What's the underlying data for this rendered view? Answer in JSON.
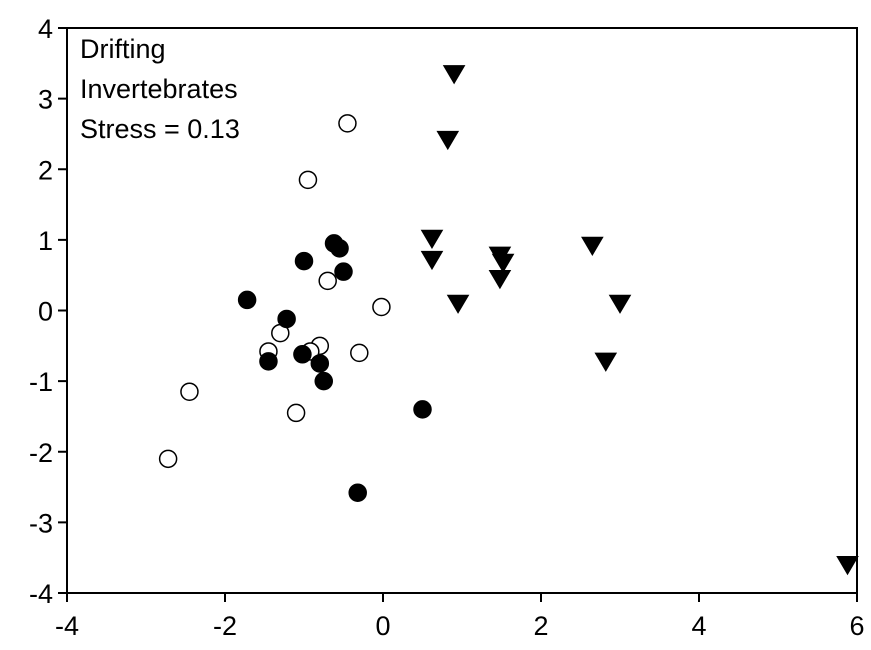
{
  "chart_data": {
    "type": "scatter",
    "title": "",
    "xlabel": "",
    "ylabel": "",
    "xlim": [
      -4,
      6
    ],
    "ylim": [
      -4,
      4
    ],
    "xticks": [
      -4,
      -2,
      0,
      2,
      4,
      6
    ],
    "yticks": [
      -4,
      -3,
      -2,
      -1,
      0,
      1,
      2,
      3,
      4
    ],
    "grid": false,
    "legend": "none",
    "annotation": [
      "Drifting",
      "Invertebrates",
      "Stress = 0.13"
    ],
    "series": [
      {
        "marker": "open-circle",
        "color": "#ffffff",
        "points": [
          {
            "x": -0.45,
            "y": 2.65
          },
          {
            "x": -0.95,
            "y": 1.85
          },
          {
            "x": -0.7,
            "y": 0.42
          },
          {
            "x": -0.02,
            "y": 0.05
          },
          {
            "x": -1.3,
            "y": -0.32
          },
          {
            "x": -1.45,
            "y": -0.58
          },
          {
            "x": -0.8,
            "y": -0.5
          },
          {
            "x": -0.92,
            "y": -0.58
          },
          {
            "x": -0.3,
            "y": -0.6
          },
          {
            "x": -2.45,
            "y": -1.15
          },
          {
            "x": -1.1,
            "y": -1.45
          },
          {
            "x": -2.72,
            "y": -2.1
          }
        ]
      },
      {
        "marker": "filled-circle",
        "color": "#000000",
        "points": [
          {
            "x": -0.62,
            "y": 0.95
          },
          {
            "x": -0.55,
            "y": 0.88
          },
          {
            "x": -1.0,
            "y": 0.7
          },
          {
            "x": -0.5,
            "y": 0.55
          },
          {
            "x": -1.72,
            "y": 0.15
          },
          {
            "x": -1.22,
            "y": -0.12
          },
          {
            "x": -1.02,
            "y": -0.62
          },
          {
            "x": -1.45,
            "y": -0.72
          },
          {
            "x": -0.8,
            "y": -0.75
          },
          {
            "x": -0.75,
            "y": -1.0
          },
          {
            "x": 0.5,
            "y": -1.4
          },
          {
            "x": -0.32,
            "y": -2.58
          }
        ]
      },
      {
        "marker": "filled-triangle-down",
        "color": "#000000",
        "points": [
          {
            "x": 0.9,
            "y": 3.35
          },
          {
            "x": 0.82,
            "y": 2.42
          },
          {
            "x": 0.62,
            "y": 1.02
          },
          {
            "x": 0.62,
            "y": 0.72
          },
          {
            "x": 1.48,
            "y": 0.78
          },
          {
            "x": 1.52,
            "y": 0.68
          },
          {
            "x": 1.48,
            "y": 0.45
          },
          {
            "x": 0.95,
            "y": 0.1
          },
          {
            "x": 2.65,
            "y": 0.92
          },
          {
            "x": 3.0,
            "y": 0.1
          },
          {
            "x": 2.82,
            "y": -0.72
          },
          {
            "x": 5.88,
            "y": -3.6
          }
        ]
      }
    ]
  }
}
